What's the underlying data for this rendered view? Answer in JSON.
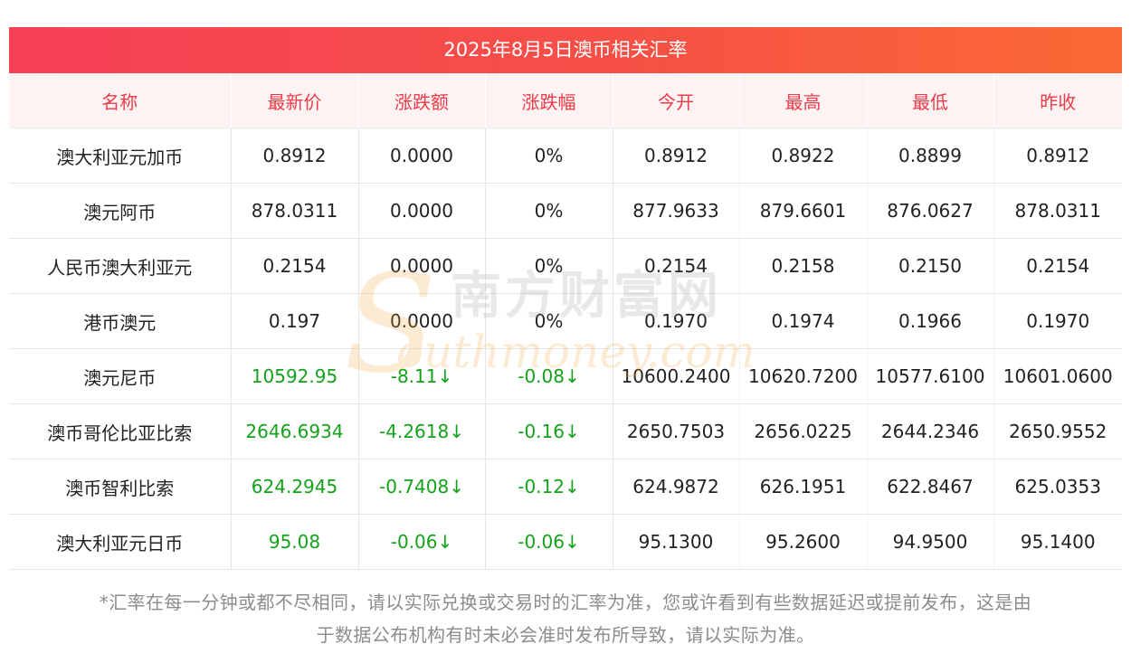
{
  "title": "2025年8月5日澳币相关汇率",
  "columns": [
    "名称",
    "最新价",
    "涨跌额",
    "涨跌幅",
    "今开",
    "最高",
    "最低",
    "昨收"
  ],
  "rows": [
    {
      "name": "澳大利亚元加币",
      "latest": "0.8912",
      "change": "0.0000",
      "change_pct": "0%",
      "open": "0.8912",
      "high": "0.8922",
      "low": "0.8899",
      "prev_close": "0.8912",
      "trend": "flat"
    },
    {
      "name": "澳元阿币",
      "latest": "878.0311",
      "change": "0.0000",
      "change_pct": "0%",
      "open": "877.9633",
      "high": "879.6601",
      "low": "876.0627",
      "prev_close": "878.0311",
      "trend": "flat"
    },
    {
      "name": "人民币澳大利亚元",
      "latest": "0.2154",
      "change": "0.0000",
      "change_pct": "0%",
      "open": "0.2154",
      "high": "0.2158",
      "low": "0.2150",
      "prev_close": "0.2154",
      "trend": "flat"
    },
    {
      "name": "港币澳元",
      "latest": "0.197",
      "change": "0.0000",
      "change_pct": "0%",
      "open": "0.1970",
      "high": "0.1974",
      "low": "0.1966",
      "prev_close": "0.1970",
      "trend": "flat"
    },
    {
      "name": "澳元尼币",
      "latest": "10592.95",
      "change": "-8.11↓",
      "change_pct": "-0.08↓",
      "open": "10600.2400",
      "high": "10620.7200",
      "low": "10577.6100",
      "prev_close": "10601.0600",
      "trend": "down"
    },
    {
      "name": "澳币哥伦比亚比索",
      "latest": "2646.6934",
      "change": "-4.2618↓",
      "change_pct": "-0.16↓",
      "open": "2650.7503",
      "high": "2656.0225",
      "low": "2644.2346",
      "prev_close": "2650.9552",
      "trend": "down"
    },
    {
      "name": "澳币智利比索",
      "latest": "624.2945",
      "change": "-0.7408↓",
      "change_pct": "-0.12↓",
      "open": "624.9872",
      "high": "626.1951",
      "low": "622.8467",
      "prev_close": "625.0353",
      "trend": "down"
    },
    {
      "name": "澳大利亚元日币",
      "latest": "95.08",
      "change": "-0.06↓",
      "change_pct": "-0.06↓",
      "open": "95.1300",
      "high": "95.2600",
      "low": "94.9500",
      "prev_close": "95.1400",
      "trend": "down"
    }
  ],
  "watermark": {
    "cn": "南方财富网",
    "en": "outhmoney.com",
    "s_glyph": "S"
  },
  "footnote": {
    "line1": "*汇率在每一分钟或都不尽相同，请以实际兑换或交易时的汇率为准，您或许看到有些数据延迟或提前发布，这是由",
    "line2": "于数据公布机构有时未必会准时发布所导致，请以实际为准。"
  },
  "colors": {
    "header_gradient_start": "#f64056",
    "header_gradient_end": "#fb6a34",
    "header_text": "#ee3b4a",
    "down": "#13a21a",
    "footnote": "#8c8c8c"
  }
}
